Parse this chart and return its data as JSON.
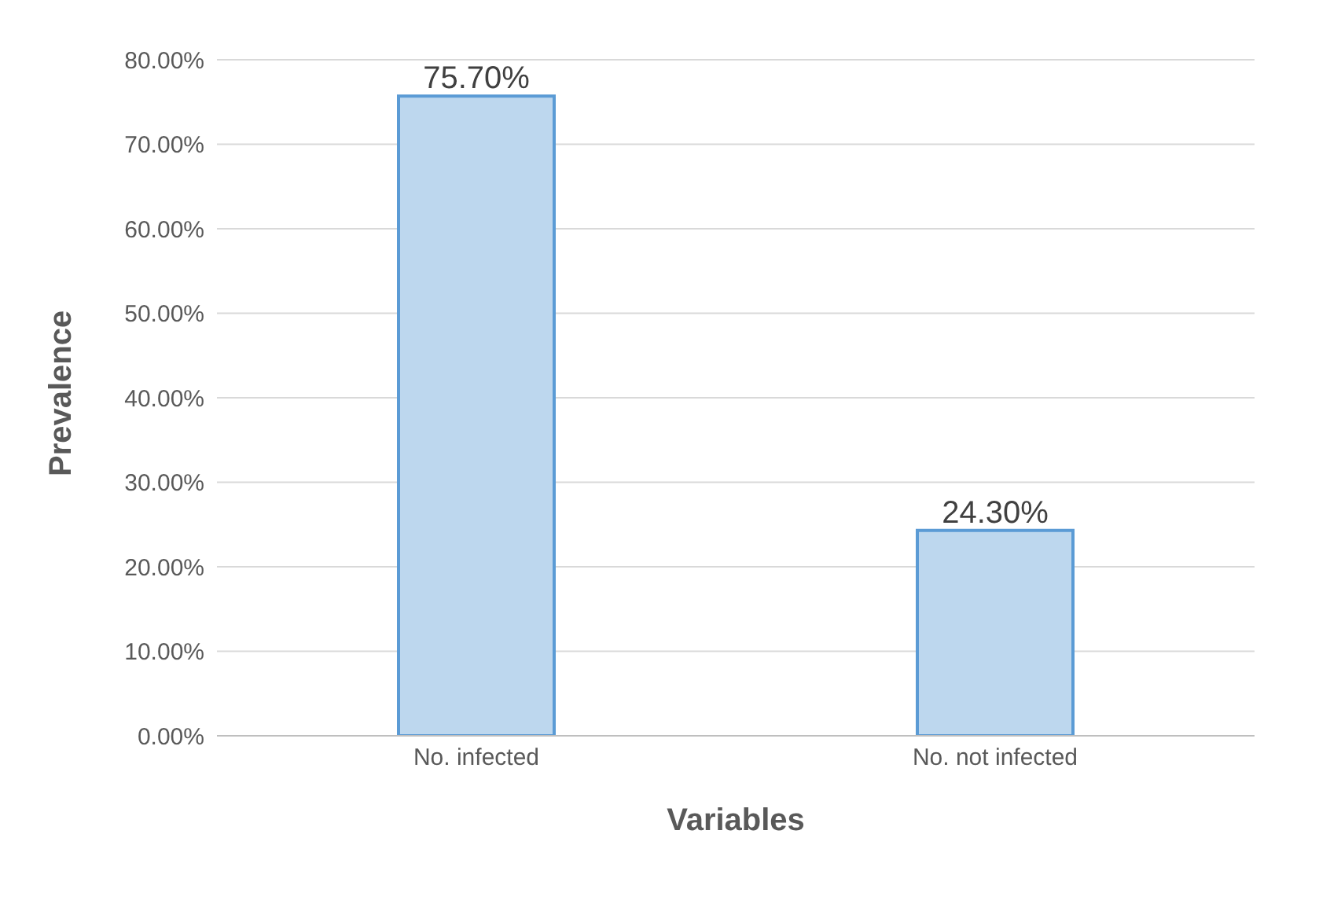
{
  "chart_data": {
    "type": "bar",
    "xlabel": "Variables",
    "ylabel": "Prevalence",
    "categories": [
      "No. infected",
      "No. not infected"
    ],
    "values": [
      75.7,
      24.3
    ],
    "color": "#bdd7ee",
    "value_labels": [
      "75.70%",
      "24.30%"
    ],
    "ylim": [
      0,
      80
    ],
    "yticks": [
      {
        "value": 0,
        "label": "0.00%"
      },
      {
        "value": 10,
        "label": "10.00%"
      },
      {
        "value": 20,
        "label": "20.00%"
      },
      {
        "value": 30,
        "label": "30.00%"
      },
      {
        "value": 40,
        "label": "40.00%"
      },
      {
        "value": 50,
        "label": "50.00%"
      },
      {
        "value": 60,
        "label": "60.00%"
      },
      {
        "value": 70,
        "label": "70.00%"
      },
      {
        "value": 80,
        "label": "80.00%"
      }
    ],
    "grid": "y",
    "legend": false
  }
}
